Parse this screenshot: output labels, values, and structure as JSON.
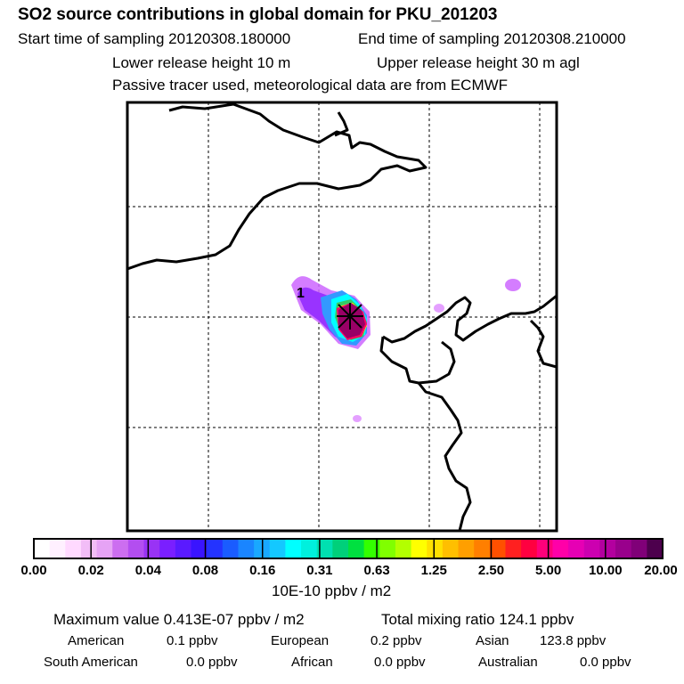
{
  "header": {
    "title": "SO2 source contributions in global domain for PKU_201203",
    "start_label": "Start time of sampling 20120308.180000",
    "end_label": "End time of sampling 20120308.210000",
    "lower_label": "Lower release height   10 m",
    "upper_label": "Upper release height   30 m    agl",
    "tracer_label": "Passive tracer used, meteorological data are from ECMWF"
  },
  "map": {
    "release_marker_label": "1",
    "plume_colors": [
      "#cc66ff",
      "#9933ff",
      "#3399ff",
      "#00ffff",
      "#33cc66",
      "#ffff00",
      "#ff0066",
      "#990066",
      "#660033"
    ]
  },
  "colorbar": {
    "colors": [
      "#ffffff",
      "#fff0ff",
      "#ffd9ff",
      "#f2bdf7",
      "#e6a3f5",
      "#cc6ef0",
      "#b34ef0",
      "#9933f5",
      "#7a1fff",
      "#5a1aff",
      "#3a14ff",
      "#2433ff",
      "#1a5cff",
      "#1a85ff",
      "#19a8ff",
      "#14c8ff",
      "#00ffff",
      "#00f0dd",
      "#00e0b0",
      "#00d07a",
      "#00e040",
      "#33ff00",
      "#80ff00",
      "#b3ff00",
      "#ffff00",
      "#ffe000",
      "#ffbf00",
      "#ff9f00",
      "#ff7f00",
      "#ff5000",
      "#ff2020",
      "#ff0040",
      "#ff007a",
      "#ff00a8",
      "#e600b4",
      "#cc00b0",
      "#b3009f",
      "#99008c",
      "#800078",
      "#4d004d"
    ],
    "tick_labels": [
      "0.00",
      "0.02",
      "0.04",
      "0.08",
      "0.16",
      "0.31",
      "0.63",
      "1.25",
      "2.50",
      "5.00",
      "10.00",
      "20.00"
    ],
    "units": "10E-10 ppbv / m2"
  },
  "summary": {
    "max_value": "Maximum value  0.413E-07 ppbv / m2",
    "total_ratio": "Total mixing ratio      124.1 ppbv",
    "american": "American",
    "american_val": "0.1 ppbv",
    "european": "European",
    "european_val": "0.2 ppbv",
    "asian": "Asian",
    "asian_val": "123.8 ppbv",
    "south_american": "South American",
    "south_american_val": "0.0 ppbv",
    "african": "African",
    "african_val": "0.0 ppbv",
    "australian": "Australian",
    "australian_val": "0.0 ppbv"
  }
}
